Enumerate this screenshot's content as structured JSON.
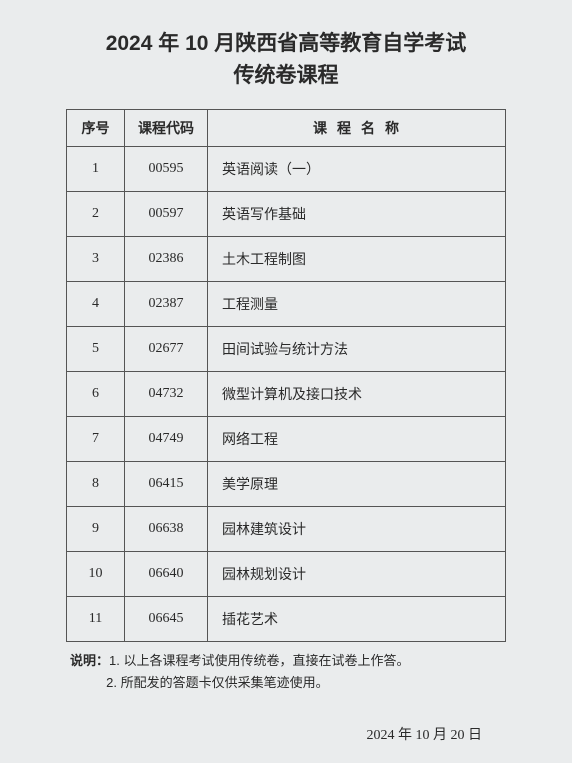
{
  "title_line1": "2024 年 10 月陕西省高等教育自学考试",
  "title_line2": "传统卷课程",
  "table": {
    "headers": {
      "seq": "序号",
      "code": "课程代码",
      "name": "课程名称"
    },
    "rows": [
      {
        "seq": "1",
        "code": "00595",
        "name": "英语阅读（一）"
      },
      {
        "seq": "2",
        "code": "00597",
        "name": "英语写作基础"
      },
      {
        "seq": "3",
        "code": "02386",
        "name": "土木工程制图"
      },
      {
        "seq": "4",
        "code": "02387",
        "name": "工程测量"
      },
      {
        "seq": "5",
        "code": "02677",
        "name": "田间试验与统计方法"
      },
      {
        "seq": "6",
        "code": "04732",
        "name": "微型计算机及接口技术"
      },
      {
        "seq": "7",
        "code": "04749",
        "name": "网络工程"
      },
      {
        "seq": "8",
        "code": "06415",
        "name": "美学原理"
      },
      {
        "seq": "9",
        "code": "06638",
        "name": "园林建筑设计"
      },
      {
        "seq": "10",
        "code": "06640",
        "name": "园林规划设计"
      },
      {
        "seq": "11",
        "code": "06645",
        "name": "插花艺术"
      }
    ]
  },
  "notes": {
    "label": "说明：",
    "item1": "1. 以上各课程考试使用传统卷，直接在试卷上作答。",
    "item2": "2. 所配发的答题卡仅供采集笔迹使用。"
  },
  "date": "2024 年 10 月 20 日"
}
